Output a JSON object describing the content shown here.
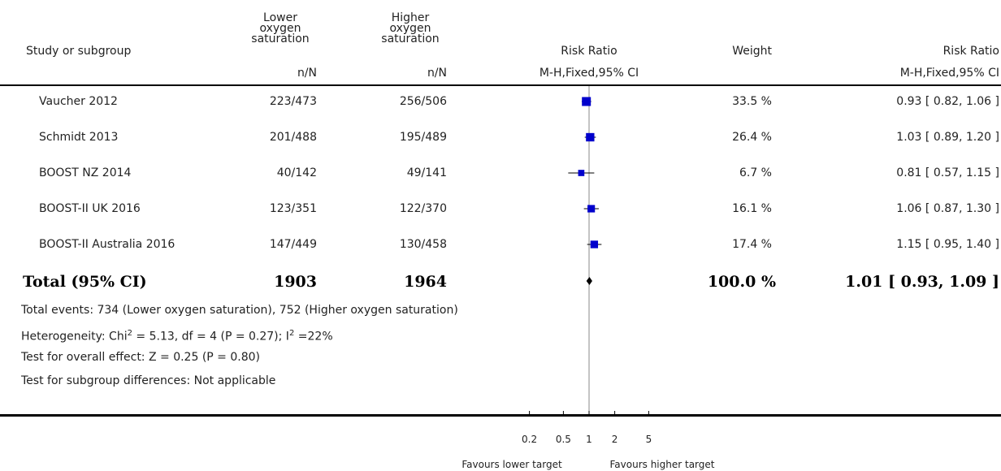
{
  "header": {
    "study_col": "Study or subgroup",
    "group1": [
      "Lower",
      "oxygen",
      "saturation"
    ],
    "group2": [
      "Higher",
      "oxygen",
      "saturation"
    ],
    "n_over_N": "n/N",
    "plot_title": "Risk Ratio",
    "plot_method": "M-H,Fixed,95% CI",
    "weight": "Weight",
    "rr_title": "Risk Ratio",
    "rr_method": "M-H,Fixed,95% CI"
  },
  "studies": [
    {
      "name": "Vaucher 2012",
      "g1": "223/473",
      "g2": "256/506",
      "weight": "33.5 %",
      "ci_text": "0.93 [ 0.82, 1.06 ]"
    },
    {
      "name": "Schmidt 2013",
      "g1": "201/488",
      "g2": "195/489",
      "weight": "26.4 %",
      "ci_text": "1.03 [ 0.89, 1.20 ]"
    },
    {
      "name": "BOOST NZ 2014",
      "g1": "40/142",
      "g2": "49/141",
      "weight": "6.7 %",
      "ci_text": "0.81 [ 0.57, 1.15 ]"
    },
    {
      "name": "BOOST-II UK 2016",
      "g1": "123/351",
      "g2": "122/370",
      "weight": "16.1 %",
      "ci_text": "1.06 [ 0.87, 1.30 ]"
    },
    {
      "name": "BOOST-II Australia 2016",
      "g1": "147/449",
      "g2": "130/458",
      "weight": "17.4 %",
      "ci_text": "1.15 [ 0.95, 1.40 ]"
    }
  ],
  "total": {
    "label": "Total (95% CI)",
    "g1": "1903",
    "g2": "1964",
    "weight": "100.0 %",
    "ci_text": "1.01 [ 0.93, 1.09 ]"
  },
  "footnotes": {
    "events": "Total events: 734 (Lower oxygen saturation), 752 (Higher oxygen saturation)",
    "heterogeneity_a": "Heterogeneity: Chi",
    "heterogeneity_b": "2",
    "heterogeneity_c": " = 5.13, df = 4 (P = 0.27); I",
    "heterogeneity_d": "2",
    "heterogeneity_e": " =22%",
    "overall": "Test for overall effect: Z = 0.25 (P = 0.80)",
    "subgroup": "Test for subgroup differences: Not applicable"
  },
  "axis": {
    "ticks": [
      "0.2",
      "0.5",
      "1",
      "2",
      "5"
    ],
    "favours_left": "Favours lower target",
    "favours_right": "Favours higher target"
  },
  "colors": {
    "marker": "#0000cc",
    "line": "#000000",
    "null_line": "#888888"
  },
  "chart_data": {
    "type": "forest",
    "scale": "log",
    "xlim": [
      0.2,
      5
    ],
    "studies": [
      {
        "name": "Vaucher 2012",
        "rr": 0.93,
        "lo": 0.82,
        "hi": 1.06,
        "weight": 33.5
      },
      {
        "name": "Schmidt 2013",
        "rr": 1.03,
        "lo": 0.89,
        "hi": 1.2,
        "weight": 26.4
      },
      {
        "name": "BOOST NZ 2014",
        "rr": 0.81,
        "lo": 0.57,
        "hi": 1.15,
        "weight": 6.7
      },
      {
        "name": "BOOST-II UK 2016",
        "rr": 1.06,
        "lo": 0.87,
        "hi": 1.3,
        "weight": 16.1
      },
      {
        "name": "BOOST-II Australia 2016",
        "rr": 1.15,
        "lo": 0.95,
        "hi": 1.4,
        "weight": 17.4
      }
    ],
    "total": {
      "rr": 1.01,
      "lo": 0.93,
      "hi": 1.09
    }
  }
}
